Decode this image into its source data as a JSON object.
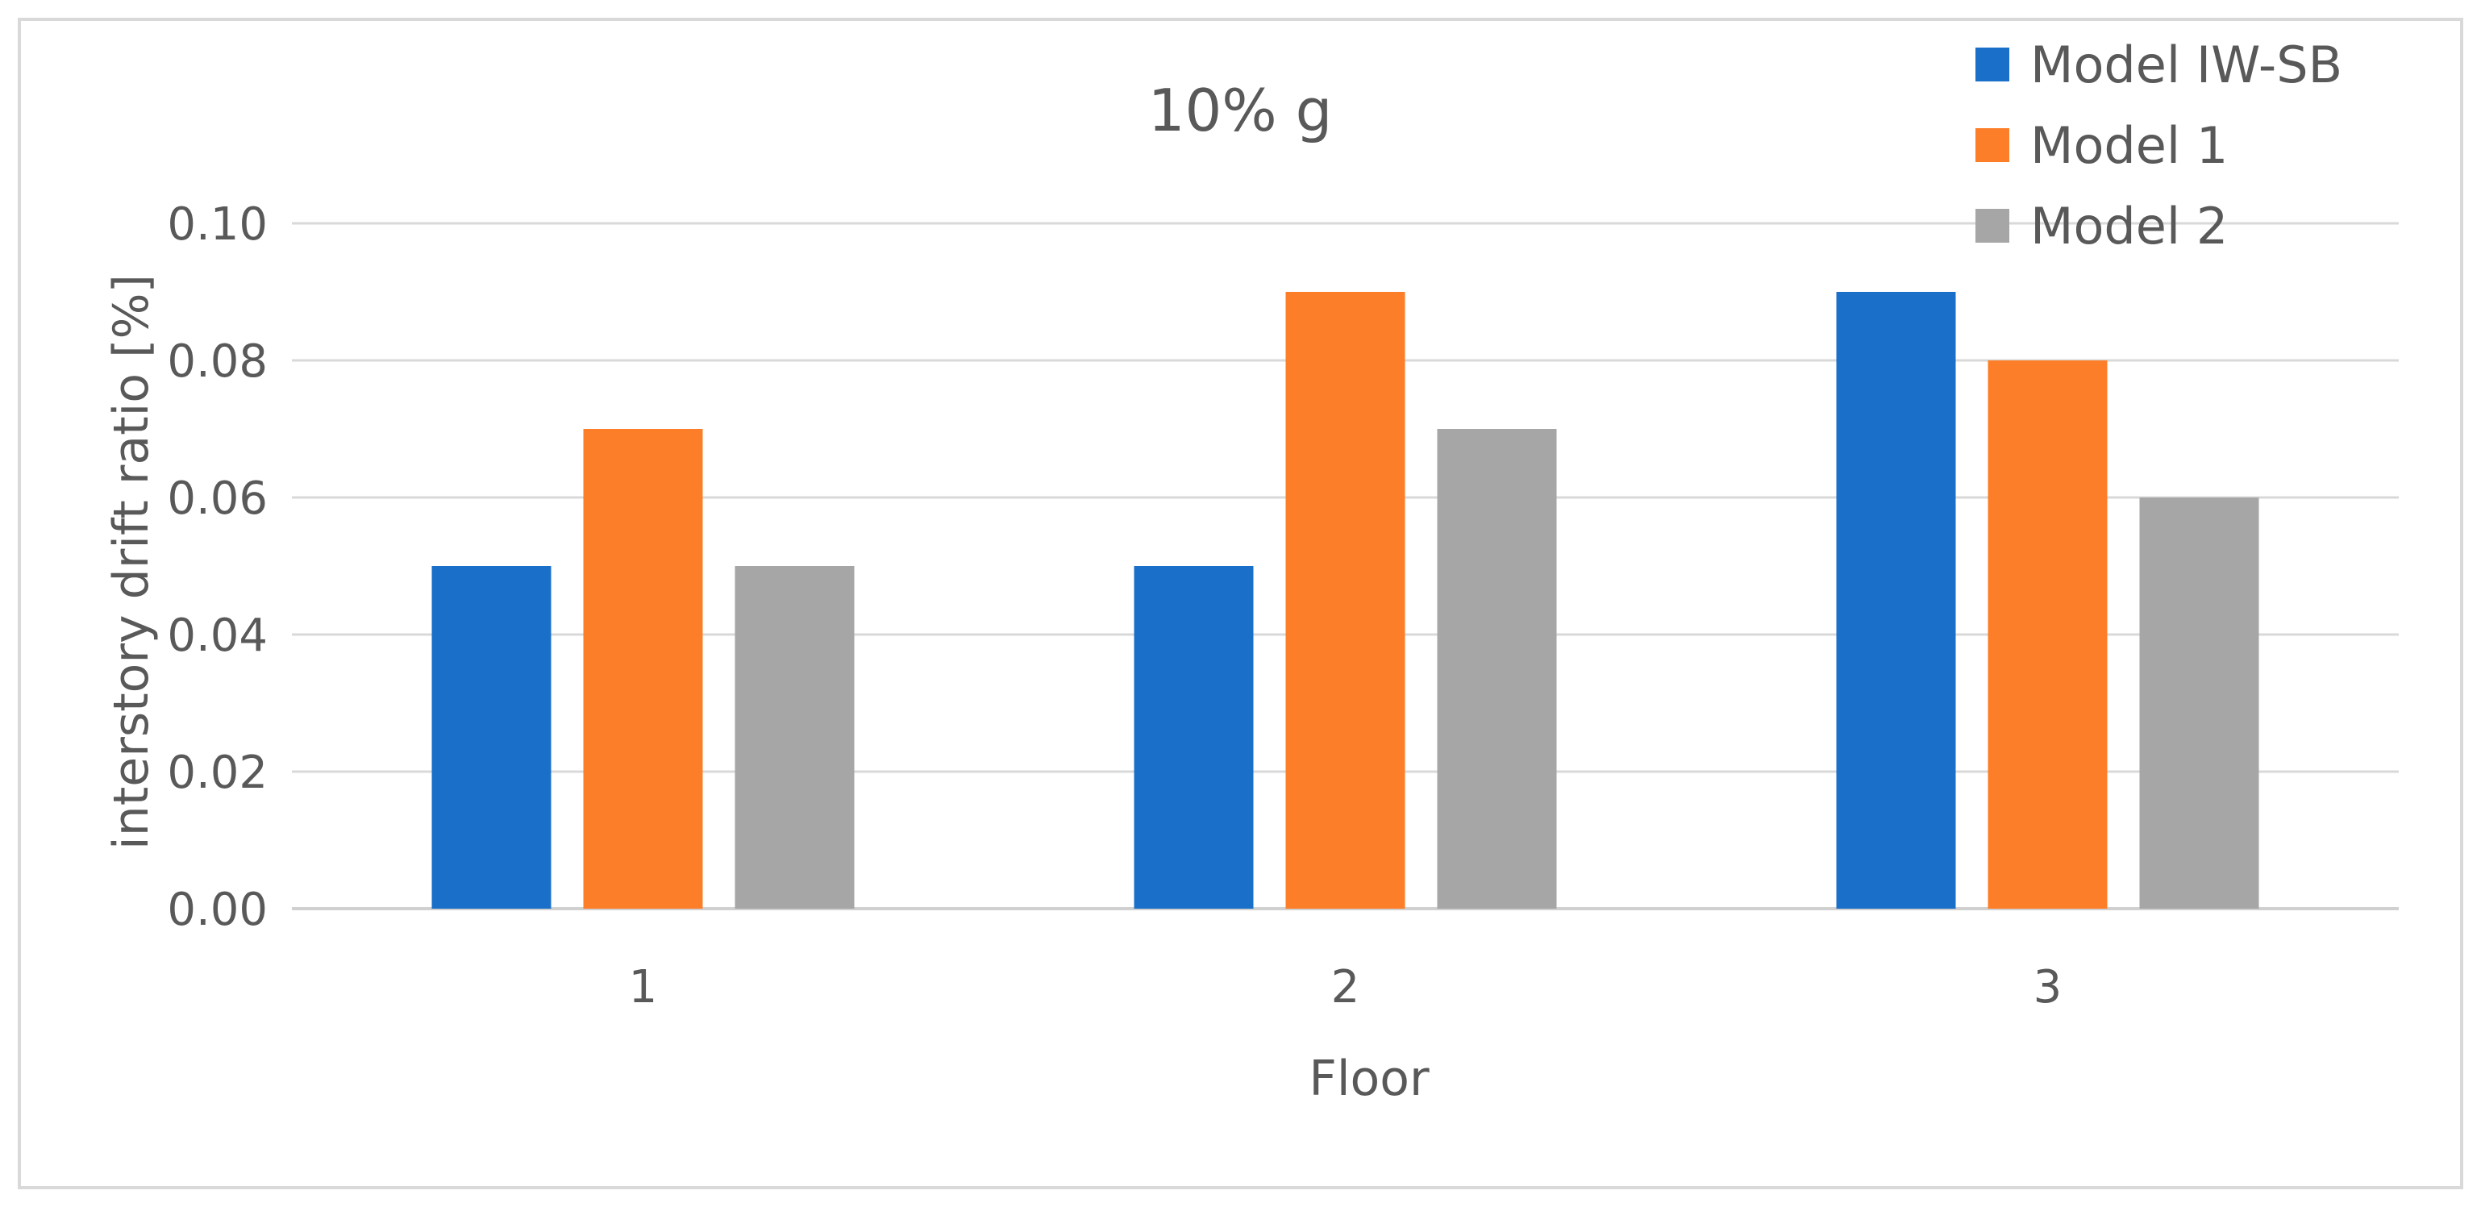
{
  "chart_data": {
    "type": "bar",
    "title": "10% g",
    "xlabel": "Floor",
    "ylabel": "interstory drift ratio [%]",
    "categories": [
      "1",
      "2",
      "3"
    ],
    "ylim": [
      0,
      0.1
    ],
    "yticks": [
      "0.00",
      "0.02",
      "0.04",
      "0.06",
      "0.08",
      "0.10"
    ],
    "grid": true,
    "legend_position": "top-right",
    "series": [
      {
        "name": "Model IW-SB",
        "color": "#1a70c9",
        "values": [
          0.05,
          0.05,
          0.09
        ]
      },
      {
        "name": "Model 1",
        "color": "#fd7e28",
        "values": [
          0.07,
          0.09,
          0.08
        ]
      },
      {
        "name": "Model 2",
        "color": "#a6a6a6",
        "values": [
          0.05,
          0.07,
          0.06
        ]
      }
    ]
  }
}
